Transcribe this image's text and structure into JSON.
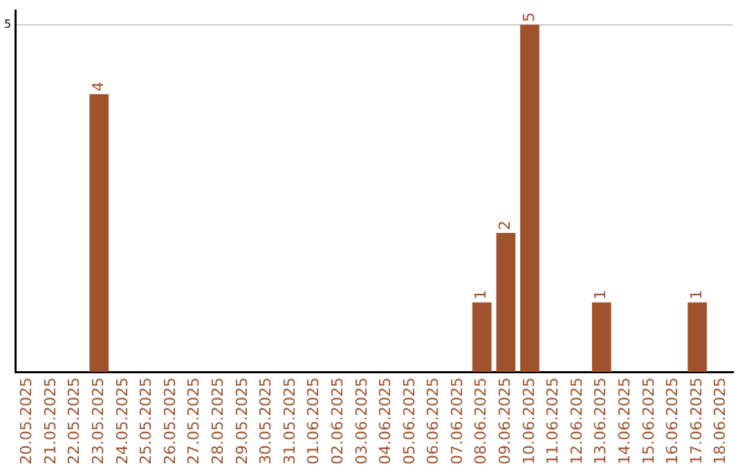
{
  "chart_data": {
    "type": "bar",
    "categories": [
      "20.05.2025",
      "21.05.2025",
      "22.05.2025",
      "23.05.2025",
      "24.05.2025",
      "25.05.2025",
      "26.05.2025",
      "27.05.2025",
      "28.05.2025",
      "29.05.2025",
      "30.05.2025",
      "31.05.2025",
      "01.06.2025",
      "02.06.2025",
      "03.06.2025",
      "04.06.2025",
      "05.06.2025",
      "06.06.2025",
      "07.06.2025",
      "08.06.2025",
      "09.06.2025",
      "10.06.2025",
      "11.06.2025",
      "12.06.2025",
      "13.06.2025",
      "14.06.2025",
      "15.06.2025",
      "16.06.2025",
      "17.06.2025",
      "18.06.2025"
    ],
    "values": [
      0,
      0,
      0,
      4,
      0,
      0,
      0,
      0,
      0,
      0,
      0,
      0,
      0,
      0,
      0,
      0,
      0,
      0,
      0,
      1,
      2,
      5,
      0,
      0,
      1,
      0,
      0,
      0,
      1,
      0
    ],
    "value_labels": [
      null,
      null,
      null,
      "4",
      null,
      null,
      null,
      null,
      null,
      null,
      null,
      null,
      null,
      null,
      null,
      null,
      null,
      null,
      null,
      "1",
      "2",
      "5",
      null,
      null,
      "1",
      null,
      null,
      null,
      "1",
      null
    ],
    "color": "#a0522d",
    "ylim": [
      0,
      5.2
    ],
    "yticks": [
      5
    ],
    "grid": "y",
    "legend": false
  }
}
